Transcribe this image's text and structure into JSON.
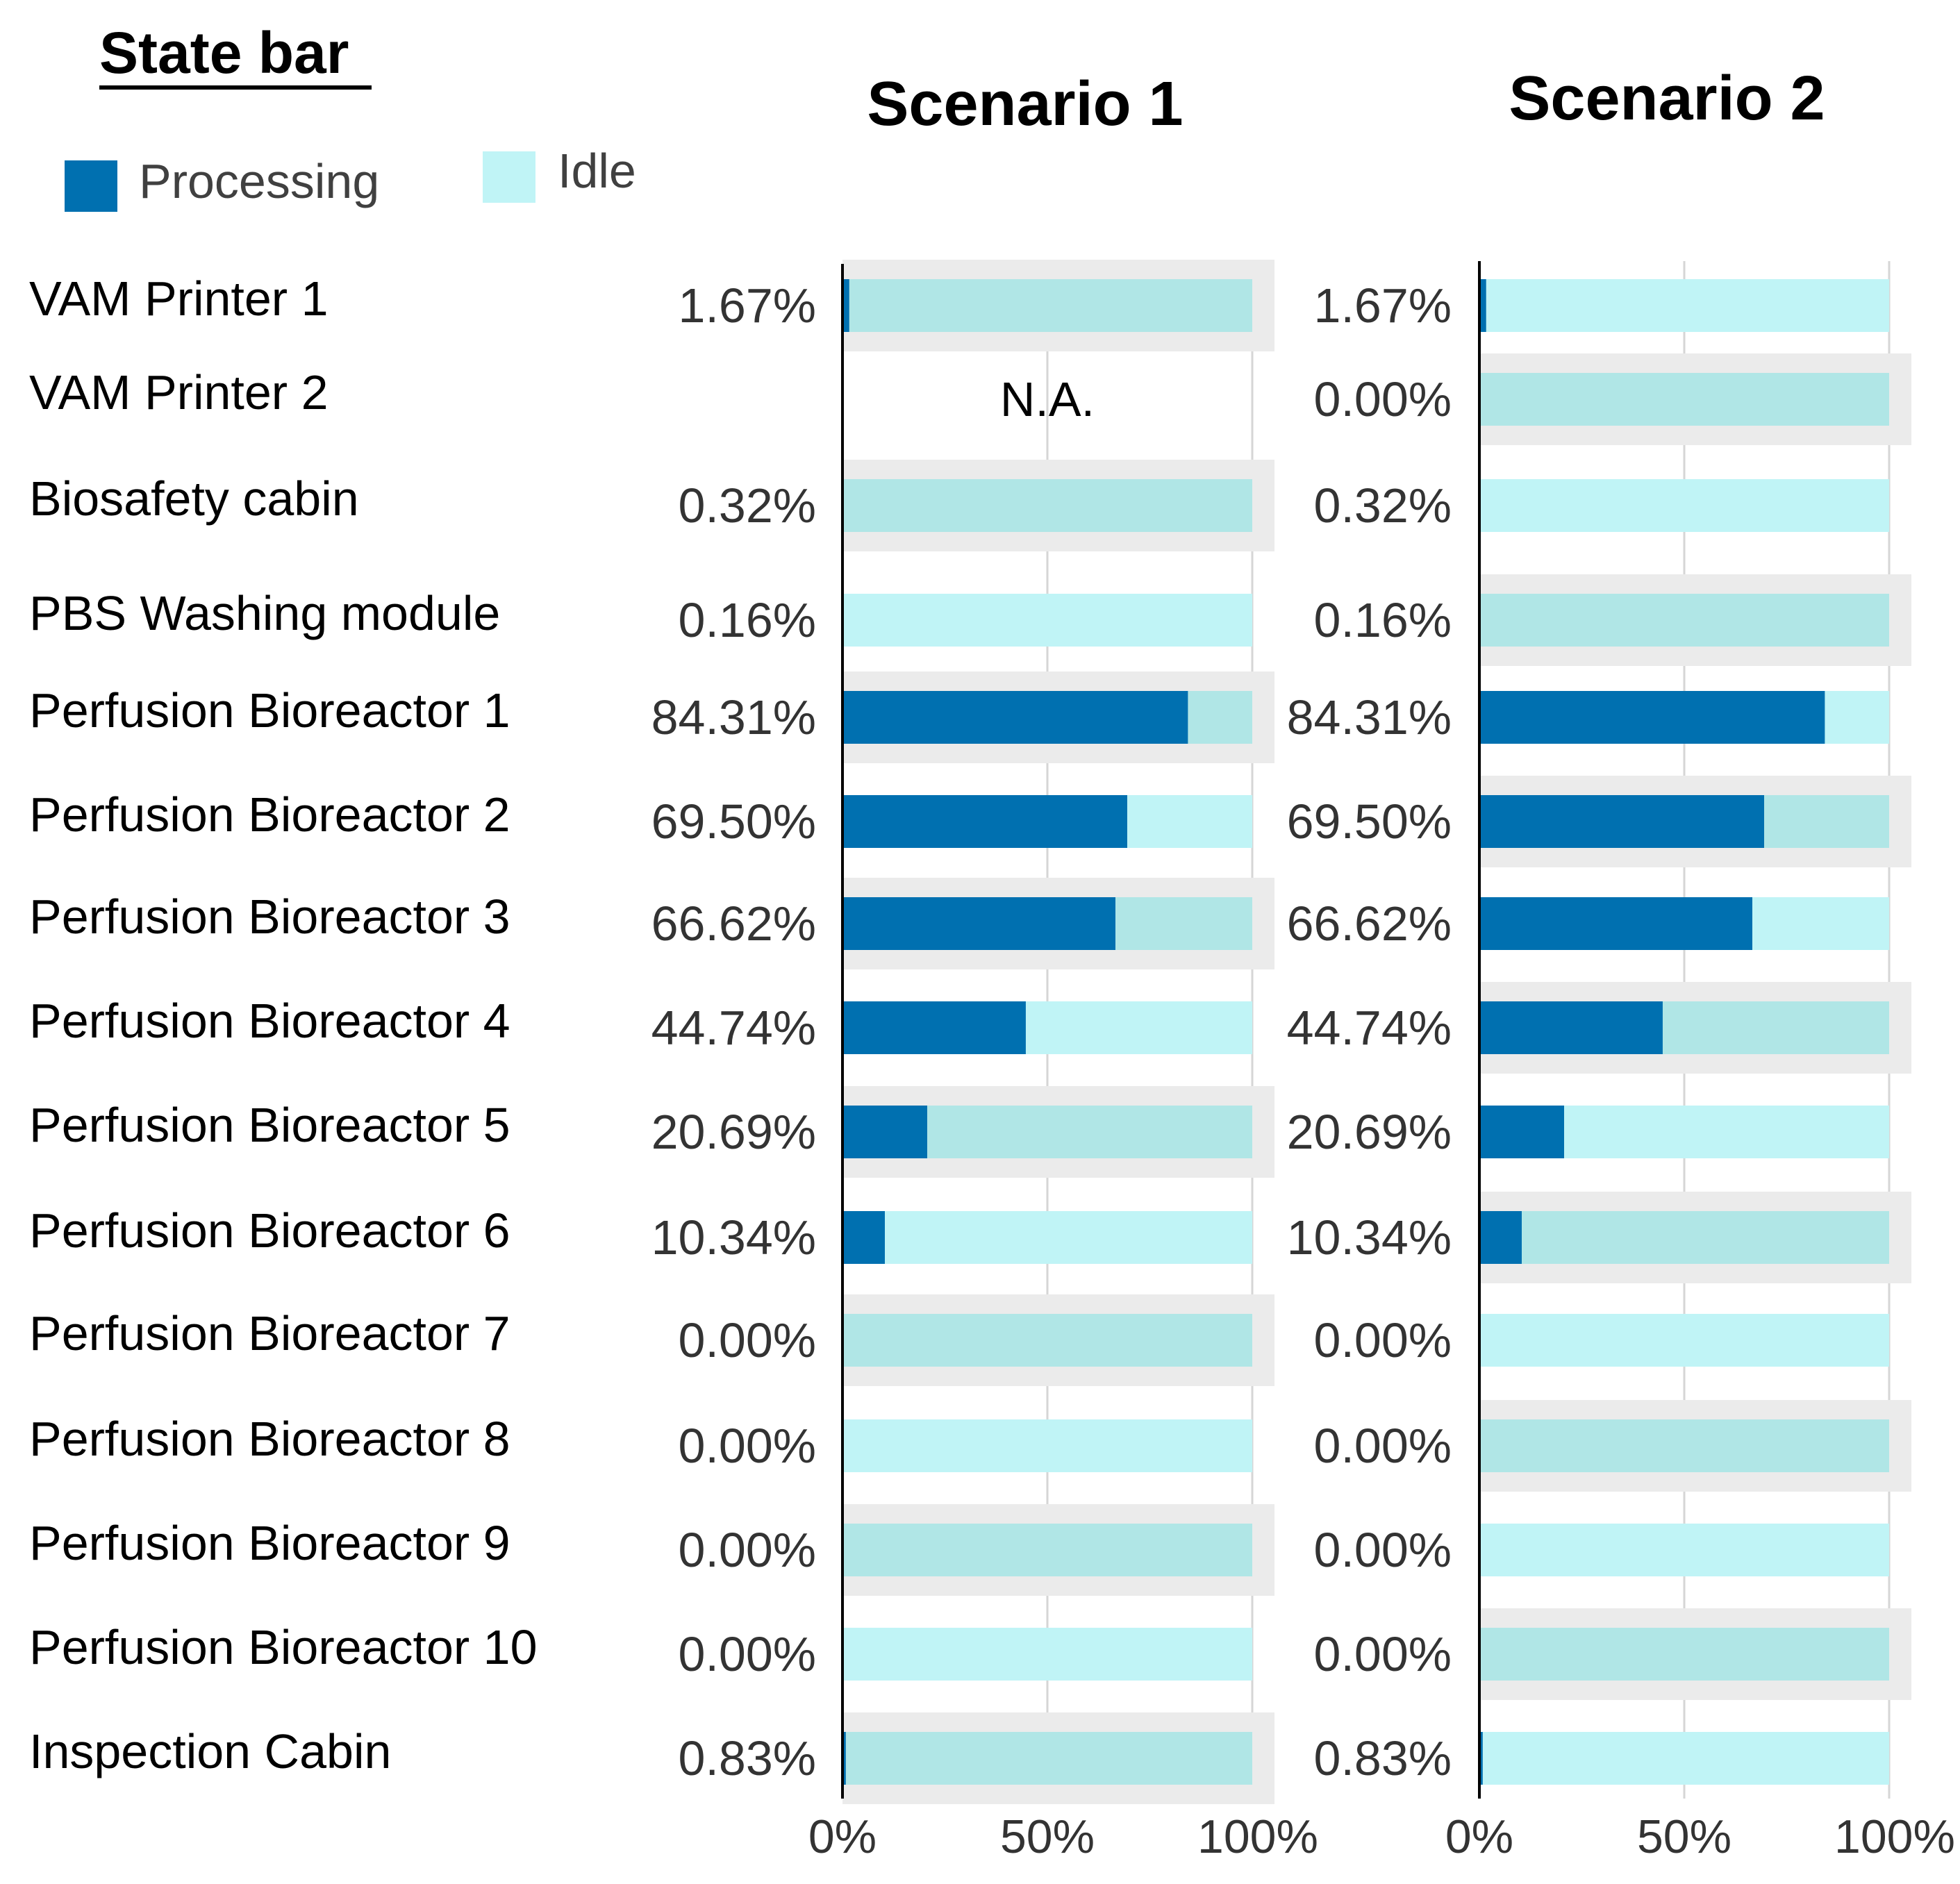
{
  "heading": "State bar",
  "legend": [
    {
      "label": "Processing",
      "color": "#0070B0"
    },
    {
      "label": "Idle",
      "color": "#C0F4F6"
    }
  ],
  "colors": {
    "processing": "#0070B0",
    "idle_light": "#C0F4F6",
    "idle_dark": "#B0E6E6",
    "row_band": "#EBEBEB",
    "gridline": "#D6D6D6"
  },
  "chart_data": [
    {
      "type": "bar",
      "orientation": "horizontal",
      "stacked": true,
      "title": "Scenario 1",
      "categories": [
        "VAM Printer 1",
        "VAM Printer 2",
        "Biosafety cabin",
        "PBS Washing module",
        "Perfusion Bioreactor 1",
        "Perfusion Bioreactor 2",
        "Perfusion Bioreactor 3",
        "Perfusion Bioreactor 4",
        "Perfusion Bioreactor 5",
        "Perfusion Bioreactor 6",
        "Perfusion Bioreactor 7",
        "Perfusion Bioreactor 8",
        "Perfusion Bioreactor 9",
        "Perfusion Bioreactor 10",
        "Inspection Cabin"
      ],
      "series": [
        {
          "name": "Processing",
          "values": [
            1.67,
            null,
            0.32,
            0.16,
            84.31,
            69.5,
            66.62,
            44.74,
            20.69,
            10.34,
            0,
            0,
            0,
            0,
            0.83
          ]
        },
        {
          "name": "Idle",
          "values": [
            98.33,
            null,
            99.68,
            99.84,
            15.69,
            30.5,
            33.38,
            55.26,
            79.31,
            89.66,
            100,
            100,
            100,
            100,
            99.17
          ]
        }
      ],
      "value_labels": [
        "1.67%",
        "N.A.",
        "0.32%",
        "0.16%",
        "84.31%",
        "69.50%",
        "66.62%",
        "44.74%",
        "20.69%",
        "10.34%",
        "0.00%",
        "0.00%",
        "0.00%",
        "0.00%",
        "0.83%"
      ],
      "xlim": [
        0,
        100
      ],
      "xticks": [
        "0%",
        "50%",
        "100%"
      ],
      "grid": true
    },
    {
      "type": "bar",
      "orientation": "horizontal",
      "stacked": true,
      "title": "Scenario 2",
      "categories": [
        "VAM Printer 1",
        "VAM Printer 2",
        "Biosafety cabin",
        "PBS Washing module",
        "Perfusion Bioreactor 1",
        "Perfusion Bioreactor 2",
        "Perfusion Bioreactor 3",
        "Perfusion Bioreactor 4",
        "Perfusion Bioreactor 5",
        "Perfusion Bioreactor 6",
        "Perfusion Bioreactor 7",
        "Perfusion Bioreactor 8",
        "Perfusion Bioreactor 9",
        "Perfusion Bioreactor 10",
        "Inspection Cabin"
      ],
      "series": [
        {
          "name": "Processing",
          "values": [
            1.67,
            0,
            0.32,
            0.16,
            84.31,
            69.5,
            66.62,
            44.74,
            20.69,
            10.34,
            0,
            0,
            0,
            0,
            0.83
          ]
        },
        {
          "name": "Idle",
          "values": [
            98.33,
            100,
            99.68,
            99.84,
            15.69,
            30.5,
            33.38,
            55.26,
            79.31,
            89.66,
            100,
            100,
            100,
            100,
            99.17
          ]
        }
      ],
      "value_labels": [
        "1.67%",
        "0.00%",
        "0.32%",
        "0.16%",
        "84.31%",
        "69.50%",
        "66.62%",
        "44.74%",
        "20.69%",
        "10.34%",
        "0.00%",
        "0.00%",
        "0.00%",
        "0.00%",
        "0.83%"
      ],
      "xlim": [
        0,
        100
      ],
      "xticks": [
        "0%",
        "50%",
        "100%"
      ],
      "grid": true
    }
  ]
}
